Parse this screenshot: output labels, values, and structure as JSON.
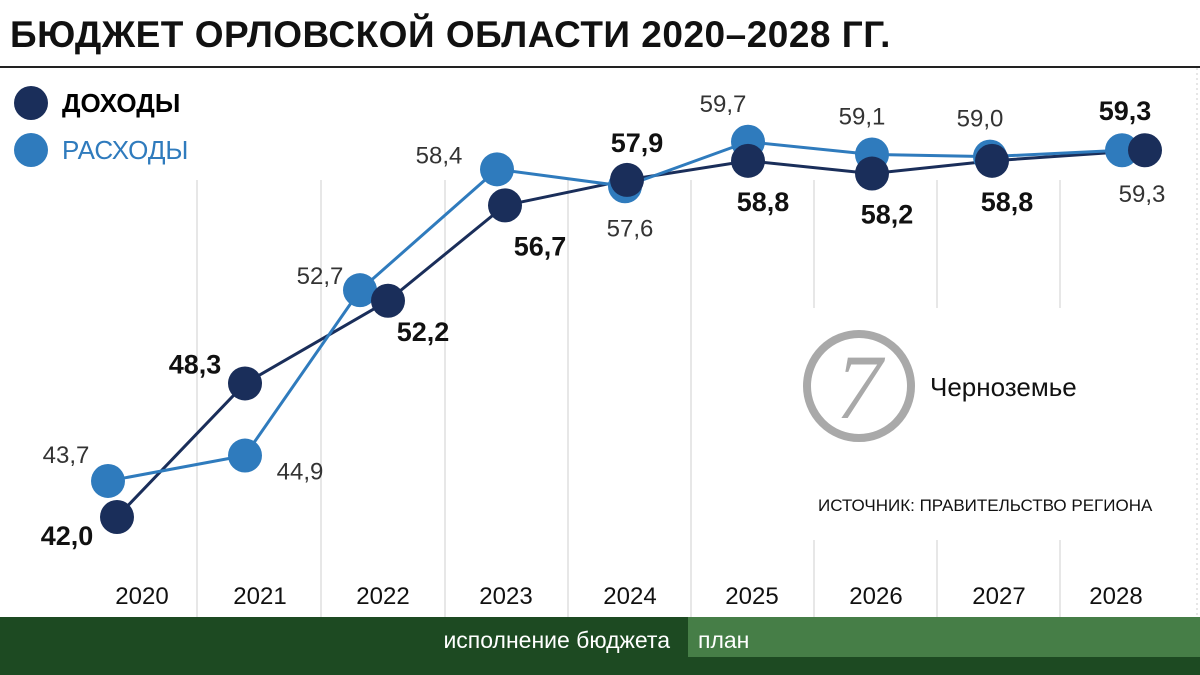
{
  "title": "БЮДЖЕТ ОРЛОВСКОЙ ОБЛАСТИ 2020–2028 ГГ.",
  "chart_data": {
    "type": "line",
    "categories": [
      "2020",
      "2021",
      "2022",
      "2023",
      "2024",
      "2025",
      "2026",
      "2027",
      "2028"
    ],
    "series": [
      {
        "name": "ДОХОДЫ",
        "color": "#1a2e5a",
        "values": [
          42.0,
          48.3,
          52.2,
          56.7,
          57.9,
          58.8,
          58.2,
          58.8,
          59.3
        ],
        "labels": [
          "42,0",
          "48,3",
          "52,2",
          "56,7",
          "57,9",
          "58,8",
          "58,2",
          "58,8",
          "59,3"
        ]
      },
      {
        "name": "РАСХОДЫ",
        "color": "#2f7bbd",
        "values": [
          43.7,
          44.9,
          52.7,
          58.4,
          57.6,
          59.7,
          59.1,
          59.0,
          59.3
        ],
        "labels": [
          "43,7",
          "44,9",
          "52,7",
          "58,4",
          "57,6",
          "59,7",
          "59,1",
          "59,0",
          "59,3"
        ]
      }
    ],
    "grid": "vertical",
    "legend": "top-left"
  },
  "periods": {
    "actual": "исполнение бюджета",
    "plan": "план"
  },
  "brand": "Черноземье",
  "source": "ИСТОЧНИК: ПРАВИТЕЛЬСТВО РЕГИОНА"
}
